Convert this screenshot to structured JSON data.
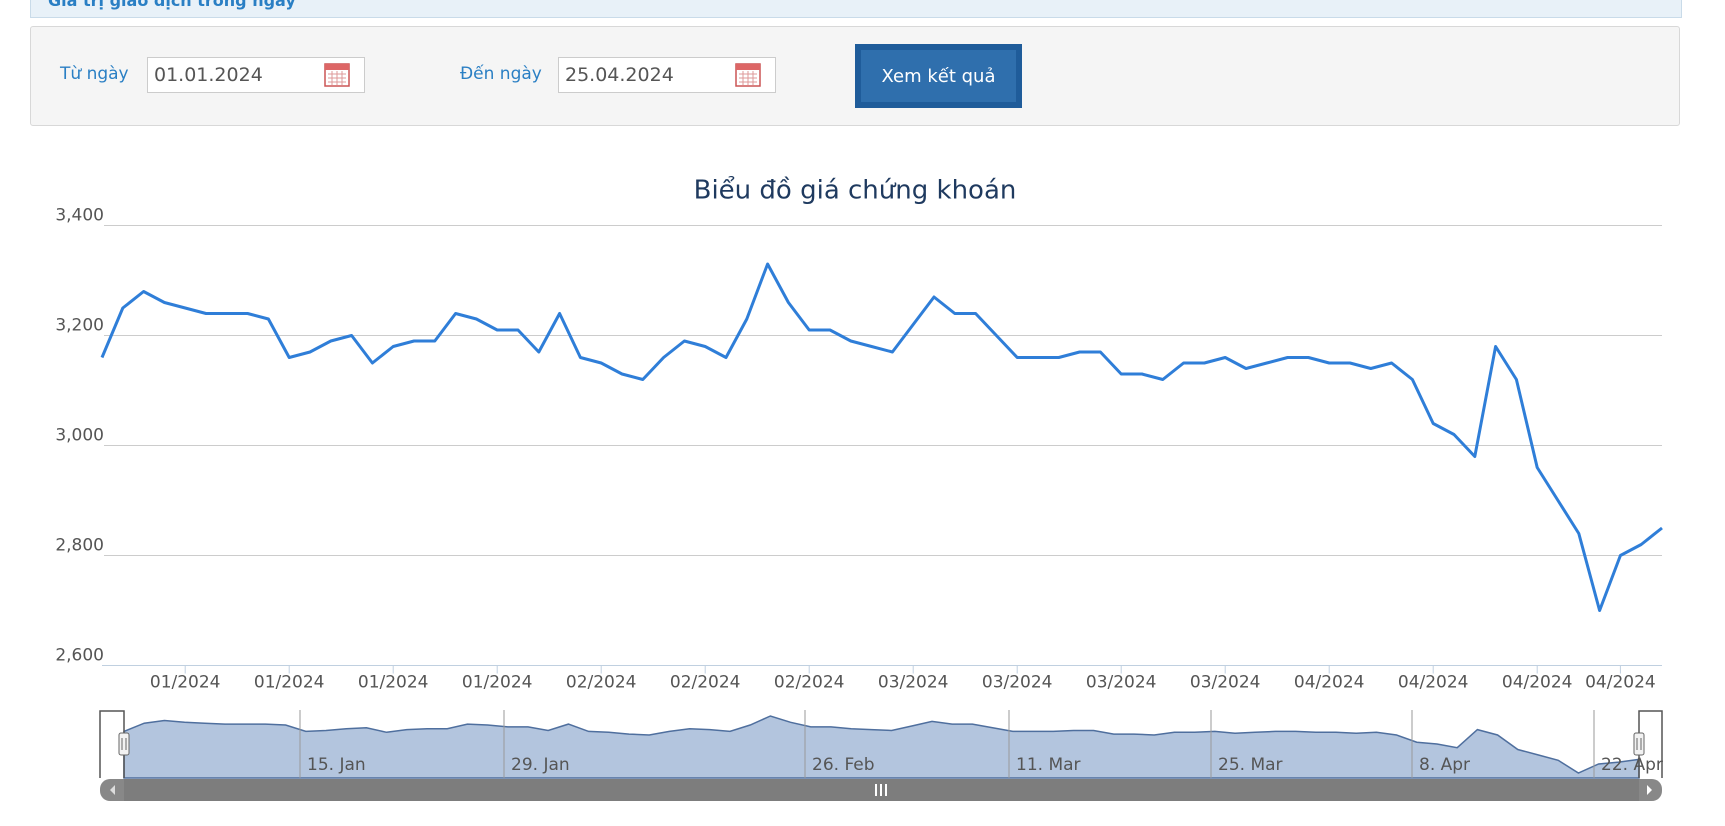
{
  "header": {
    "tab": "Giá trị giao dịch trong ngày"
  },
  "form": {
    "from_label": "Từ ngày",
    "from_value": "01.01.2024",
    "to_label": "Đến ngày",
    "to_value": "25.04.2024",
    "button": "Xem kết quả"
  },
  "chart_data": {
    "type": "line",
    "title": "Biểu đồ giá chứng khoán",
    "color": "#2f7ed8",
    "grid": true,
    "ylim": [
      2600,
      3400
    ],
    "yticks": [
      {
        "value": 2600,
        "label": "2,600"
      },
      {
        "value": 2800,
        "label": "2,800"
      },
      {
        "value": 3000,
        "label": "3,000"
      },
      {
        "value": 3200,
        "label": "3,200"
      },
      {
        "value": 3400,
        "label": "3,400"
      }
    ],
    "categories": [
      null,
      null,
      null,
      null,
      "01/2024",
      null,
      null,
      null,
      null,
      "01/2024",
      null,
      null,
      null,
      null,
      "01/2024",
      null,
      null,
      null,
      null,
      "01/2024",
      null,
      null,
      null,
      null,
      "02/2024",
      null,
      null,
      null,
      null,
      "02/2024",
      null,
      null,
      null,
      null,
      "02/2024",
      null,
      null,
      null,
      null,
      "03/2024",
      null,
      null,
      null,
      null,
      "03/2024",
      null,
      null,
      null,
      null,
      "03/2024",
      null,
      null,
      null,
      null,
      "03/2024",
      null,
      null,
      null,
      null,
      "04/2024",
      null,
      null,
      null,
      null,
      "04/2024",
      null,
      null,
      null,
      null,
      "04/2024",
      null,
      null,
      null,
      "04/2024",
      null,
      null
    ],
    "values": [
      3160,
      3250,
      3280,
      3260,
      3250,
      3240,
      3240,
      3240,
      3230,
      3160,
      3170,
      3190,
      3200,
      3150,
      3180,
      3190,
      3190,
      3240,
      3230,
      3210,
      3210,
      3170,
      3240,
      3160,
      3150,
      3130,
      3120,
      3160,
      3190,
      3180,
      3160,
      3230,
      3330,
      3260,
      3210,
      3210,
      3190,
      3180,
      3170,
      3220,
      3270,
      3240,
      3240,
      3200,
      3160,
      3160,
      3160,
      3170,
      3170,
      3130,
      3130,
      3120,
      3150,
      3150,
      3160,
      3140,
      3150,
      3160,
      3160,
      3150,
      3150,
      3140,
      3150,
      3120,
      3040,
      3020,
      2980,
      3180,
      3120,
      2960,
      2900,
      2840,
      2700,
      2800,
      2820,
      2850
    ],
    "navigator": {
      "labels": [
        "15. Jan",
        "29. Jan",
        "26. Feb",
        "11. Mar",
        "25. Mar",
        "8. Apr",
        "22. Apr"
      ]
    }
  }
}
